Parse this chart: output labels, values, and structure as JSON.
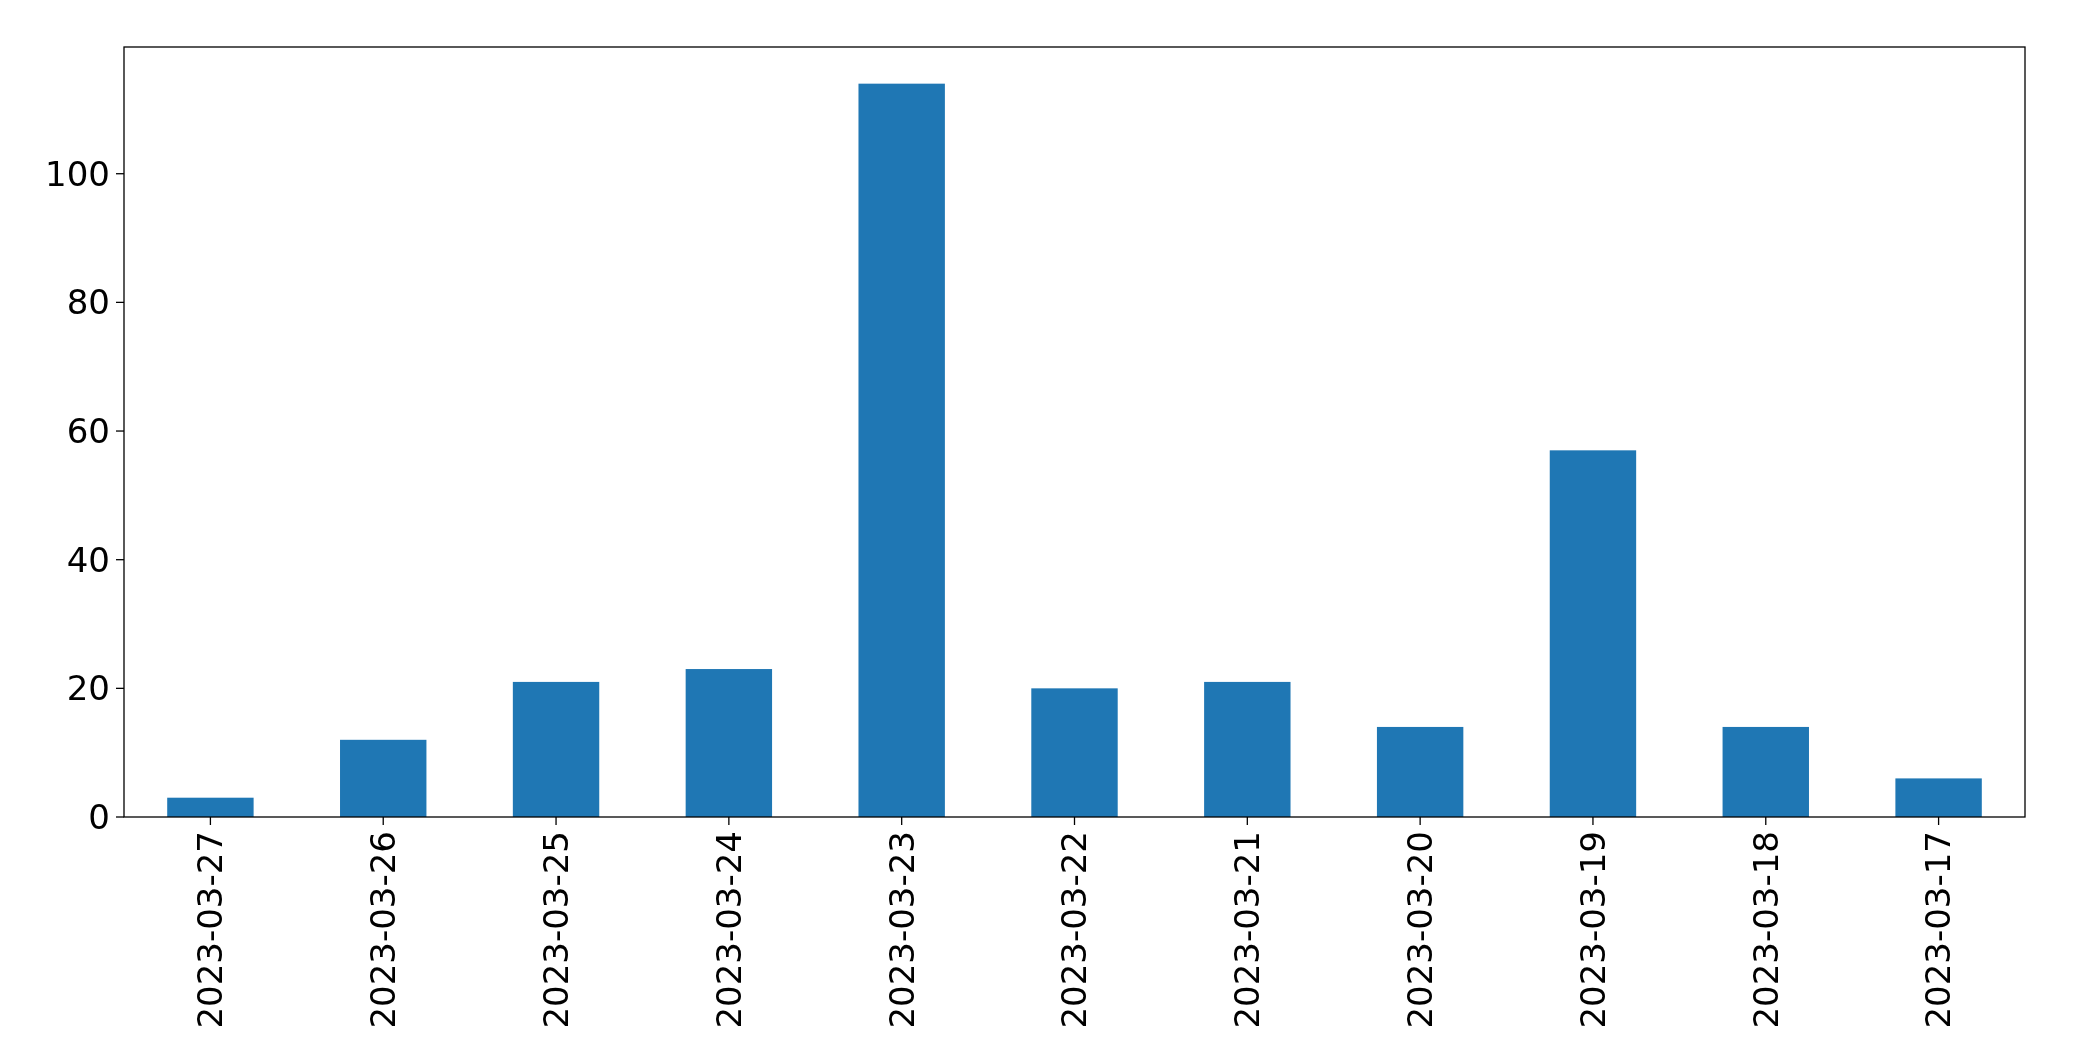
{
  "chart_data": {
    "type": "bar",
    "categories": [
      "2023-03-27",
      "2023-03-26",
      "2023-03-25",
      "2023-03-24",
      "2023-03-23",
      "2023-03-22",
      "2023-03-21",
      "2023-03-20",
      "2023-03-19",
      "2023-03-18",
      "2023-03-17"
    ],
    "values": [
      3,
      12,
      21,
      23,
      114,
      20,
      21,
      14,
      57,
      14,
      6
    ],
    "color": "#1f77b4",
    "ylim": [
      0,
      119.7
    ],
    "yticks": [
      0,
      20,
      40,
      60,
      80,
      100
    ],
    "grid": false
  }
}
